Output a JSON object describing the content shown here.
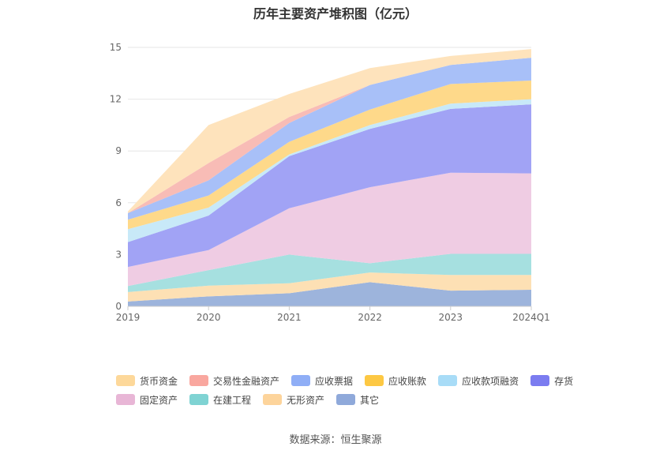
{
  "title": "历年主要资产堆积图（亿元）",
  "source": "数据来源：恒生聚源",
  "chart_data": {
    "type": "area",
    "stacked": true,
    "categories": [
      "2019",
      "2020",
      "2021",
      "2022",
      "2023",
      "2024Q1"
    ],
    "ylim": [
      0,
      15
    ],
    "yticks": [
      0,
      3,
      6,
      9,
      12,
      15
    ],
    "grid": true,
    "legend_position": "bottom",
    "series": [
      {
        "name": "其它",
        "color": "#9db4dc",
        "values": [
          0.28,
          0.58,
          0.76,
          1.4,
          0.91,
          0.96
        ]
      },
      {
        "name": "无形资产",
        "color": "#fde0b4",
        "values": [
          0.55,
          0.62,
          0.58,
          0.56,
          0.91,
          0.86
        ]
      },
      {
        "name": "在建工程",
        "color": "#a6e0e0",
        "values": [
          0.35,
          0.9,
          1.66,
          0.54,
          1.22,
          1.22
        ]
      },
      {
        "name": "固定资产",
        "color": "#efcce3",
        "values": [
          1.1,
          1.16,
          2.68,
          4.4,
          4.7,
          4.66
        ]
      },
      {
        "name": "存货",
        "color": "#a1a3f5",
        "values": [
          1.44,
          2.0,
          3.02,
          3.38,
          3.7,
          4.0
        ]
      },
      {
        "name": "应收款项融资",
        "color": "#c8e9f8",
        "values": [
          0.75,
          0.46,
          0.1,
          0.22,
          0.3,
          0.3
        ]
      },
      {
        "name": "应收账款",
        "color": "#fed98a",
        "values": [
          0.55,
          0.7,
          0.73,
          0.9,
          1.14,
          1.08
        ]
      },
      {
        "name": "应收票据",
        "color": "#a8c0f8",
        "values": [
          0.38,
          0.88,
          1.09,
          1.42,
          1.1,
          1.32
        ]
      },
      {
        "name": "交易性金融资产",
        "color": "#f8bcb6",
        "values": [
          0.0,
          1.0,
          0.35,
          0.0,
          0.0,
          0.0
        ]
      },
      {
        "name": "货币资金",
        "color": "#fee3bc",
        "values": [
          0.1,
          2.2,
          1.33,
          0.98,
          0.52,
          0.5
        ]
      }
    ],
    "legend_rows": [
      [
        {
          "name": "货币资金",
          "color": "#fdd89a"
        },
        {
          "name": "交易性金融资产",
          "color": "#f9a79f"
        },
        {
          "name": "应收票据",
          "color": "#8faef6"
        },
        {
          "name": "应收账款",
          "color": "#fdc843"
        },
        {
          "name": "应收款项融资",
          "color": "#a8dcf7"
        },
        {
          "name": "存货",
          "color": "#7b7cf0"
        }
      ],
      [
        {
          "name": "固定资产",
          "color": "#e8b6d6"
        },
        {
          "name": "在建工程",
          "color": "#7fd3d3"
        },
        {
          "name": "无形资产",
          "color": "#fdd49b"
        },
        {
          "name": "其它",
          "color": "#8fa9da"
        }
      ]
    ]
  }
}
